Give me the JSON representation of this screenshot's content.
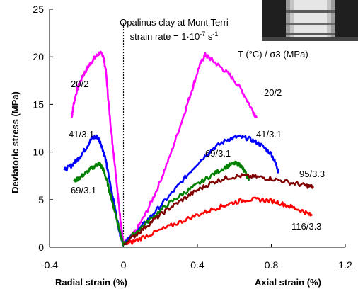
{
  "chart_data": {
    "type": "line",
    "title": "Opalinus clay at Mont Terri",
    "subtitle_prefix": "strain rate = 1·10",
    "subtitle_exp": "-7",
    "subtitle_unit": " s",
    "subtitle_unit_exp": "-1",
    "legend_title": "T (°C) / σ3 (MPa)",
    "ylabel": "Deviatoric stress (MPa)",
    "xlabel_left": "Radial strain (%)",
    "xlabel_right": "Axial strain (%)",
    "xlim": [
      -0.4,
      1.2
    ],
    "ylim": [
      0,
      25
    ],
    "x_ticks": [
      -0.4,
      0,
      0.4,
      0.8,
      1.2
    ],
    "x_tick_labels": [
      "-0.4",
      "0",
      "0.4",
      "0.8",
      "1.2"
    ],
    "y_ticks": [
      0,
      5,
      10,
      15,
      20,
      25
    ],
    "y_tick_labels": [
      "0",
      "5",
      "10",
      "15",
      "20",
      "25"
    ],
    "grid": false,
    "series": [
      {
        "name": "20/2",
        "color": "#ff00ff",
        "radial": [
          [
            -0.28,
            13.6
          ],
          [
            -0.27,
            15.0
          ],
          [
            -0.25,
            16.6
          ],
          [
            -0.22,
            18.0
          ],
          [
            -0.19,
            19.0
          ],
          [
            -0.16,
            19.8
          ],
          [
            -0.13,
            20.4
          ],
          [
            -0.11,
            20.2
          ],
          [
            -0.095,
            18.5
          ],
          [
            -0.08,
            15.0
          ],
          [
            -0.06,
            11.0
          ],
          [
            -0.04,
            7.5
          ],
          [
            -0.025,
            4.5
          ],
          [
            -0.012,
            2.2
          ],
          [
            0,
            0.3
          ]
        ],
        "axial": [
          [
            0,
            0.3
          ],
          [
            0.06,
            1.5
          ],
          [
            0.12,
            3.5
          ],
          [
            0.18,
            6.0
          ],
          [
            0.25,
            9.5
          ],
          [
            0.32,
            13.5
          ],
          [
            0.37,
            16.5
          ],
          [
            0.41,
            19.0
          ],
          [
            0.44,
            20.2
          ],
          [
            0.47,
            19.8
          ],
          [
            0.52,
            19.0
          ],
          [
            0.58,
            18.0
          ],
          [
            0.64,
            16.5
          ],
          [
            0.7,
            14.3
          ],
          [
            0.72,
            13.6
          ]
        ],
        "label_radial": "20/2",
        "label_axial": "20/2"
      },
      {
        "name": "41/3.1",
        "color": "#0000ff",
        "radial": [
          [
            -0.32,
            8.1
          ],
          [
            -0.28,
            8.6
          ],
          [
            -0.24,
            9.4
          ],
          [
            -0.2,
            10.5
          ],
          [
            -0.17,
            11.5
          ],
          [
            -0.14,
            11.6
          ],
          [
            -0.12,
            10.8
          ],
          [
            -0.1,
            9.5
          ],
          [
            -0.08,
            7.5
          ],
          [
            -0.06,
            5.5
          ],
          [
            -0.04,
            3.5
          ],
          [
            -0.02,
            1.5
          ],
          [
            0,
            0.3
          ]
        ],
        "axial": [
          [
            0,
            0.3
          ],
          [
            0.08,
            1.8
          ],
          [
            0.16,
            3.5
          ],
          [
            0.24,
            5.2
          ],
          [
            0.32,
            7.0
          ],
          [
            0.4,
            8.8
          ],
          [
            0.48,
            10.3
          ],
          [
            0.56,
            11.3
          ],
          [
            0.62,
            11.6
          ],
          [
            0.68,
            11.4
          ],
          [
            0.74,
            10.8
          ],
          [
            0.8,
            9.8
          ],
          [
            0.83,
            8.5
          ],
          [
            0.84,
            7.8
          ]
        ],
        "label_radial": "41/3.1",
        "label_axial": "41/3.1"
      },
      {
        "name": "69/3.1",
        "color": "#008000",
        "radial": [
          [
            -0.27,
            6.9
          ],
          [
            -0.23,
            7.4
          ],
          [
            -0.19,
            8.0
          ],
          [
            -0.15,
            8.6
          ],
          [
            -0.13,
            8.8
          ],
          [
            -0.11,
            8.2
          ],
          [
            -0.09,
            7.0
          ],
          [
            -0.07,
            5.5
          ],
          [
            -0.05,
            4.0
          ],
          [
            -0.03,
            2.5
          ],
          [
            -0.015,
            1.2
          ],
          [
            0,
            0.3
          ]
        ],
        "axial": [
          [
            0,
            0.3
          ],
          [
            0.08,
            1.8
          ],
          [
            0.16,
            3.2
          ],
          [
            0.24,
            4.5
          ],
          [
            0.32,
            5.6
          ],
          [
            0.4,
            6.6
          ],
          [
            0.48,
            7.6
          ],
          [
            0.55,
            8.4
          ],
          [
            0.6,
            8.8
          ],
          [
            0.63,
            8.7
          ],
          [
            0.66,
            7.8
          ],
          [
            0.68,
            7.0
          ]
        ],
        "label_radial": "69/3.1",
        "label_axial": "69/3.1"
      },
      {
        "name": "95/3.3",
        "color": "#800000",
        "axial": [
          [
            0,
            0.3
          ],
          [
            0.08,
            1.5
          ],
          [
            0.16,
            2.8
          ],
          [
            0.24,
            4.0
          ],
          [
            0.32,
            5.0
          ],
          [
            0.4,
            6.0
          ],
          [
            0.48,
            6.8
          ],
          [
            0.56,
            7.3
          ],
          [
            0.64,
            7.5
          ],
          [
            0.72,
            7.4
          ],
          [
            0.8,
            7.2
          ],
          [
            0.9,
            6.8
          ],
          [
            0.98,
            6.5
          ],
          [
            1.03,
            6.3
          ]
        ],
        "label_axial": "95/3.3"
      },
      {
        "name": "116/3.3",
        "color": "#ff0000",
        "axial": [
          [
            0.02,
            0.3
          ],
          [
            0.1,
            1.0
          ],
          [
            0.2,
            1.8
          ],
          [
            0.3,
            2.6
          ],
          [
            0.4,
            3.4
          ],
          [
            0.5,
            4.1
          ],
          [
            0.58,
            4.6
          ],
          [
            0.66,
            5.0
          ],
          [
            0.74,
            5.0
          ],
          [
            0.82,
            4.8
          ],
          [
            0.9,
            4.3
          ],
          [
            0.97,
            3.8
          ],
          [
            1.02,
            3.3
          ]
        ],
        "label_axial": "116/3.3"
      }
    ],
    "zero_line": {
      "style": "dotted",
      "x": 0
    }
  }
}
